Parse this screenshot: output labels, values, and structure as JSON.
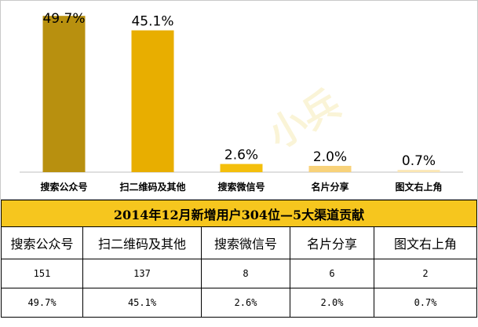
{
  "chart_data": {
    "type": "bar",
    "categories": [
      "搜索公众号",
      "扫二维码及其他",
      "搜索微信号",
      "名片分享",
      "图文右上角"
    ],
    "values": [
      49.7,
      45.1,
      2.6,
      2.0,
      0.7
    ],
    "value_labels": [
      "49.7%",
      "45.1%",
      "2.6%",
      "2.0%",
      "0.7%"
    ],
    "colors": [
      "#b8900f",
      "#e8ae00",
      "#f4bf0c",
      "#f8d27a",
      "#fbe6b4"
    ],
    "ylim": [
      0,
      50
    ],
    "grid": false,
    "legend": "none"
  },
  "watermark": "小兵",
  "table": {
    "title": "2014年12月新增用户304位—5大渠道贡献",
    "headers": [
      "搜索公众号",
      "扫二维码及其他",
      "搜索微信号",
      "名片分享",
      "图文右上角"
    ],
    "counts": [
      "151",
      "137",
      "8",
      "6",
      "2"
    ],
    "percents": [
      "49.7%",
      "45.1%",
      "2.6%",
      "2.0%",
      "0.7%"
    ]
  }
}
